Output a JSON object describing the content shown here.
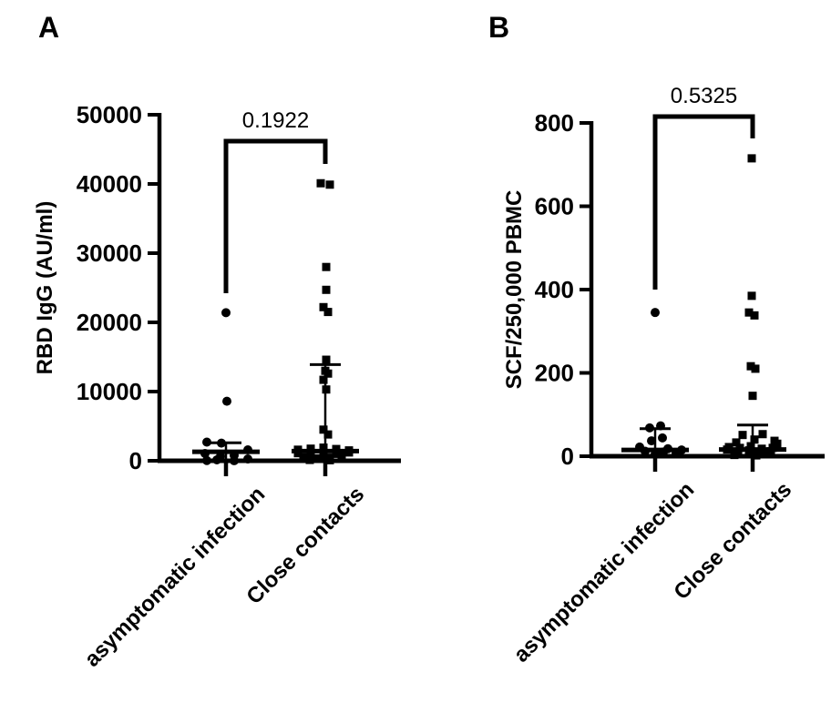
{
  "figure": {
    "background": "#ffffff",
    "ink_color": "#000000"
  },
  "chart_data": [
    {
      "type": "scatter",
      "panel_label": "A",
      "ylabel": "RBD IgG (AU/ml)",
      "ylim": [
        0,
        50000
      ],
      "yticks": [
        0,
        10000,
        20000,
        30000,
        40000,
        50000
      ],
      "ytick_labels": [
        "0",
        "10000",
        "20000",
        "30000",
        "40000",
        "50000"
      ],
      "categories": [
        "asymptomatic infection",
        "Close contacts"
      ],
      "grid": false,
      "legend": "none",
      "comparison": {
        "p_value": "0.1922",
        "between": [
          "asymptomatic infection",
          "Close contacts"
        ]
      },
      "series": [
        {
          "name": "asymptomatic infection",
          "marker": "circle",
          "median": 1300,
          "upper_whisker": 2600,
          "points": [
            [
              0,
              21400
            ],
            [
              1,
              8600
            ],
            [
              -21,
              2700
            ],
            [
              -5,
              2550
            ],
            [
              24,
              1580
            ],
            [
              -23,
              1050
            ],
            [
              9,
              790
            ],
            [
              -6,
              660
            ],
            [
              24,
              260
            ],
            [
              -10,
              130
            ],
            [
              -21,
              30
            ],
            [
              9,
              10
            ]
          ]
        },
        {
          "name": "Close contacts",
          "marker": "square",
          "median": 1400,
          "upper_whisker": 13900,
          "points": [
            [
              -5,
              40100
            ],
            [
              5,
              39900
            ],
            [
              1,
              28000
            ],
            [
              1,
              24700
            ],
            [
              -2,
              22200
            ],
            [
              3,
              21500
            ],
            [
              1,
              14600
            ],
            [
              0,
              13000
            ],
            [
              3,
              12600
            ],
            [
              -2,
              11700
            ],
            [
              1,
              10300
            ],
            [
              -2,
              4500
            ],
            [
              3,
              3800
            ],
            [
              -30,
              1600
            ],
            [
              -16,
              1750
            ],
            [
              -2,
              1900
            ],
            [
              12,
              1700
            ],
            [
              26,
              1500
            ],
            [
              -30,
              1100
            ],
            [
              -16,
              950
            ],
            [
              -2,
              800
            ],
            [
              12,
              1000
            ],
            [
              26,
              1200
            ],
            [
              -24,
              500
            ],
            [
              -10,
              350
            ],
            [
              4,
              450
            ],
            [
              18,
              550
            ],
            [
              -17,
              120
            ],
            [
              5,
              80
            ]
          ]
        }
      ]
    },
    {
      "type": "scatter",
      "panel_label": "B",
      "ylabel": "SCF/250,000 PBMC",
      "ylim": [
        0,
        800
      ],
      "yticks": [
        0,
        200,
        400,
        600,
        800
      ],
      "ytick_labels": [
        "0",
        "200",
        "400",
        "600",
        "800"
      ],
      "categories": [
        "asymptomatic infection",
        "Close contacts"
      ],
      "grid": false,
      "legend": "none",
      "comparison": {
        "p_value": "0.5325",
        "between": [
          "asymptomatic infection",
          "Close contacts"
        ]
      },
      "series": [
        {
          "name": "asymptomatic infection",
          "marker": "circle",
          "median": 15,
          "upper_whisker": 66,
          "points": [
            [
              0,
              345
            ],
            [
              -6,
              68
            ],
            [
              6,
              73
            ],
            [
              -4,
              37
            ],
            [
              8,
              44
            ],
            [
              -17,
              22
            ],
            [
              14,
              18
            ],
            [
              23,
              7
            ],
            [
              -11,
              12
            ],
            [
              0,
              5
            ],
            [
              9,
              10
            ],
            [
              29,
              15
            ]
          ]
        },
        {
          "name": "Close contacts",
          "marker": "square",
          "median": 16,
          "upper_whisker": 75,
          "points": [
            [
              -1,
              715
            ],
            [
              -1,
              385
            ],
            [
              -4,
              345
            ],
            [
              2,
              338
            ],
            [
              -2,
              216
            ],
            [
              3,
              210
            ],
            [
              0,
              145
            ],
            [
              -11,
              51
            ],
            [
              11,
              53
            ],
            [
              -18,
              33
            ],
            [
              2,
              40
            ],
            [
              24,
              37
            ],
            [
              27,
              30
            ],
            [
              -28,
              16
            ],
            [
              -16,
              11
            ],
            [
              -4,
              14
            ],
            [
              8,
              9
            ],
            [
              20,
              12
            ],
            [
              -26,
              22
            ],
            [
              -14,
              20
            ],
            [
              -2,
              24
            ],
            [
              10,
              18
            ],
            [
              22,
              20
            ],
            [
              -20,
              3
            ],
            [
              4,
              2
            ],
            [
              16,
              5
            ]
          ]
        }
      ]
    }
  ]
}
